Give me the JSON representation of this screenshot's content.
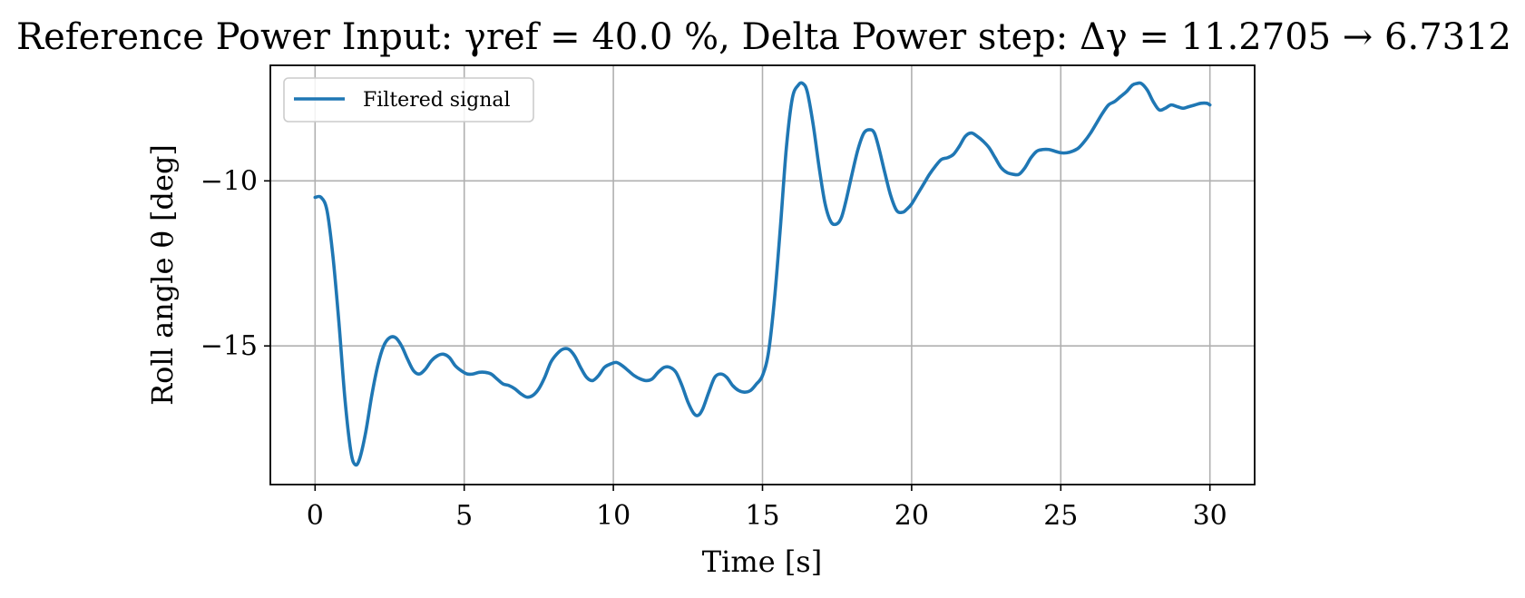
{
  "chart_data": {
    "type": "line",
    "title": "Reference Power Input: γref = 40.0 %, Delta Power step: Δγ = 11.2705 → 6.7312",
    "xlabel": "Time [s]",
    "ylabel": "Roll angle θ [deg]",
    "xlim": [
      -1.5,
      31.5
    ],
    "ylim": [
      -19.2,
      -6.5
    ],
    "xticks": [
      0,
      5,
      10,
      15,
      20,
      25,
      30
    ],
    "yticks": [
      -15,
      -10
    ],
    "xtick_labels": [
      "0",
      "5",
      "10",
      "15",
      "20",
      "25",
      "30"
    ],
    "ytick_labels": [
      "−15",
      "−10"
    ],
    "grid": true,
    "legend_position": "upper-left",
    "series": [
      {
        "name": "Filtered signal",
        "color": "#1f77b4",
        "x": [
          0,
          0.2,
          0.4,
          0.6,
          0.8,
          1.0,
          1.2,
          1.35,
          1.5,
          1.7,
          1.9,
          2.1,
          2.3,
          2.5,
          2.7,
          2.9,
          3.1,
          3.3,
          3.5,
          3.7,
          3.9,
          4.1,
          4.3,
          4.5,
          4.7,
          4.9,
          5.1,
          5.3,
          5.5,
          5.7,
          5.9,
          6.1,
          6.3,
          6.5,
          6.7,
          6.9,
          7.1,
          7.3,
          7.5,
          7.7,
          7.9,
          8.1,
          8.3,
          8.5,
          8.7,
          8.9,
          9.1,
          9.3,
          9.5,
          9.7,
          9.9,
          10.1,
          10.3,
          10.5,
          10.7,
          10.9,
          11.1,
          11.3,
          11.5,
          11.7,
          11.9,
          12.1,
          12.3,
          12.5,
          12.7,
          12.85,
          13.0,
          13.2,
          13.4,
          13.6,
          13.8,
          14.0,
          14.2,
          14.4,
          14.6,
          14.8,
          15.0,
          15.2,
          15.4,
          15.6,
          15.8,
          16.0,
          16.2,
          16.35,
          16.5,
          16.7,
          16.9,
          17.1,
          17.3,
          17.5,
          17.65,
          17.8,
          18.0,
          18.2,
          18.4,
          18.6,
          18.75,
          18.9,
          19.1,
          19.3,
          19.5,
          19.7,
          19.85,
          20.0,
          20.2,
          20.4,
          20.6,
          20.8,
          21.0,
          21.2,
          21.4,
          21.6,
          21.8,
          22.0,
          22.2,
          22.4,
          22.6,
          22.8,
          23.0,
          23.2,
          23.4,
          23.6,
          23.8,
          24.0,
          24.2,
          24.4,
          24.6,
          24.8,
          25.0,
          25.2,
          25.4,
          25.6,
          25.8,
          26.0,
          26.2,
          26.4,
          26.6,
          26.8,
          27.0,
          27.2,
          27.4,
          27.55,
          27.7,
          27.9,
          28.1,
          28.3,
          28.5,
          28.7,
          28.9,
          29.1,
          29.3,
          29.5,
          29.7,
          29.9,
          30.0
        ],
        "y": [
          -10.5,
          -10.5,
          -10.9,
          -12.3,
          -14.3,
          -16.6,
          -18.2,
          -18.6,
          -18.4,
          -17.6,
          -16.5,
          -15.6,
          -15.0,
          -14.75,
          -14.75,
          -15.0,
          -15.4,
          -15.75,
          -15.85,
          -15.7,
          -15.45,
          -15.3,
          -15.25,
          -15.35,
          -15.6,
          -15.75,
          -15.85,
          -15.85,
          -15.8,
          -15.8,
          -15.85,
          -16.0,
          -16.15,
          -16.2,
          -16.3,
          -16.45,
          -16.55,
          -16.5,
          -16.3,
          -15.95,
          -15.5,
          -15.25,
          -15.1,
          -15.1,
          -15.3,
          -15.65,
          -15.95,
          -16.05,
          -15.9,
          -15.65,
          -15.55,
          -15.5,
          -15.6,
          -15.75,
          -15.9,
          -16.0,
          -16.05,
          -16.0,
          -15.8,
          -15.65,
          -15.65,
          -15.8,
          -16.2,
          -16.7,
          -17.05,
          -17.1,
          -16.9,
          -16.4,
          -15.95,
          -15.85,
          -15.95,
          -16.2,
          -16.35,
          -16.4,
          -16.35,
          -16.15,
          -15.9,
          -15.2,
          -13.6,
          -11.4,
          -9.0,
          -7.5,
          -7.1,
          -7.05,
          -7.3,
          -8.3,
          -9.6,
          -10.7,
          -11.25,
          -11.3,
          -11.1,
          -10.6,
          -9.8,
          -9.05,
          -8.55,
          -8.45,
          -8.55,
          -9.0,
          -9.75,
          -10.45,
          -10.9,
          -10.95,
          -10.85,
          -10.7,
          -10.4,
          -10.1,
          -9.8,
          -9.55,
          -9.35,
          -9.3,
          -9.2,
          -8.95,
          -8.65,
          -8.55,
          -8.65,
          -8.8,
          -9.0,
          -9.3,
          -9.6,
          -9.75,
          -9.8,
          -9.8,
          -9.6,
          -9.3,
          -9.1,
          -9.05,
          -9.05,
          -9.1,
          -9.15,
          -9.15,
          -9.1,
          -9.0,
          -8.8,
          -8.55,
          -8.25,
          -7.95,
          -7.7,
          -7.6,
          -7.45,
          -7.3,
          -7.1,
          -7.05,
          -7.05,
          -7.25,
          -7.6,
          -7.85,
          -7.8,
          -7.7,
          -7.75,
          -7.8,
          -7.75,
          -7.7,
          -7.65,
          -7.65,
          -7.7
        ]
      }
    ]
  }
}
